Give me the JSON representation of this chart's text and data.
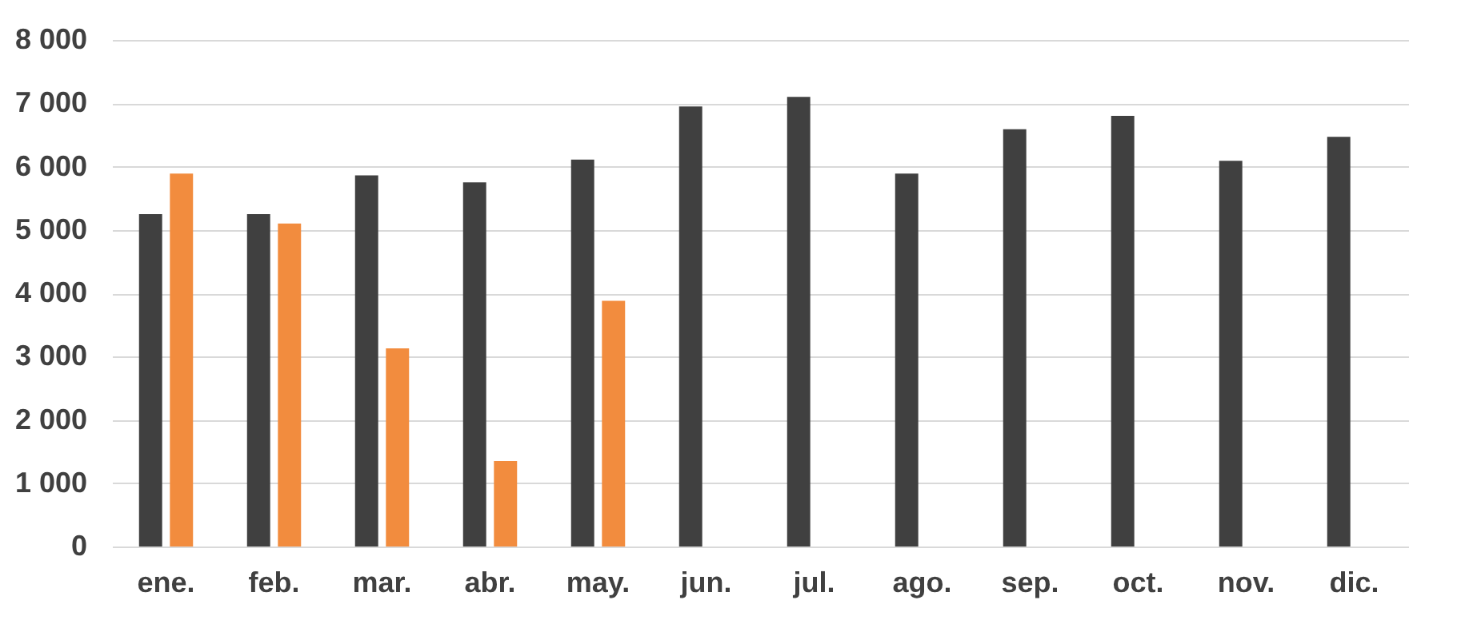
{
  "chart_data": {
    "type": "bar",
    "categories": [
      "ene.",
      "feb.",
      "mar.",
      "abr.",
      "may.",
      "jun.",
      "jul.",
      "ago.",
      "sep.",
      "oct.",
      "nov.",
      "dic."
    ],
    "series": [
      {
        "color": "#404040",
        "values": [
          5250,
          5250,
          5860,
          5750,
          6110,
          6950,
          7100,
          5890,
          6590,
          6800,
          6090,
          6470
        ]
      },
      {
        "color": "#f28c3e",
        "values": [
          5890,
          5100,
          3130,
          1350,
          3880,
          null,
          null,
          null,
          null,
          null,
          null,
          null
        ]
      }
    ],
    "ylim": [
      0,
      8000
    ],
    "yticks": [
      {
        "value": 0,
        "label": "0"
      },
      {
        "value": 1000,
        "label": "1 000"
      },
      {
        "value": 2000,
        "label": "2 000"
      },
      {
        "value": 3000,
        "label": "3 000"
      },
      {
        "value": 4000,
        "label": "4 000"
      },
      {
        "value": 5000,
        "label": "5 000"
      },
      {
        "value": 6000,
        "label": "6 000"
      },
      {
        "value": 7000,
        "label": "7 000"
      },
      {
        "value": 8000,
        "label": "8 000"
      }
    ],
    "grid": "y"
  }
}
